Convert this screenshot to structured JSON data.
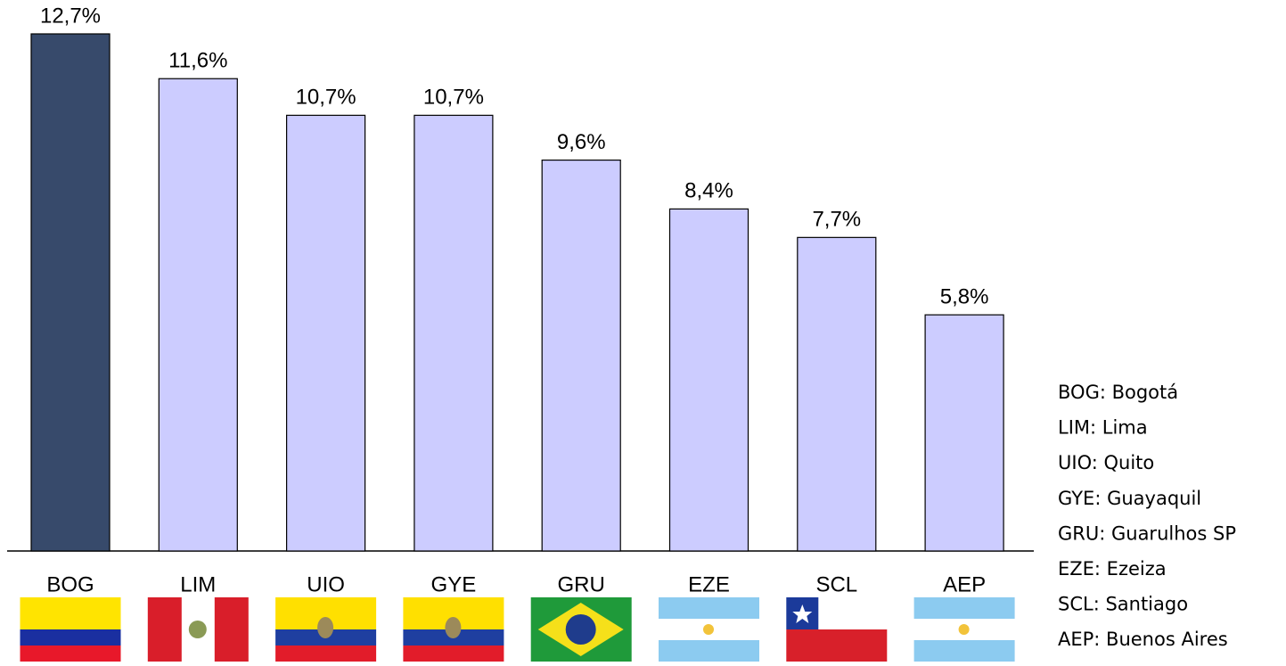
{
  "chart_data": {
    "type": "bar",
    "categories": [
      "BOG",
      "LIM",
      "UIO",
      "GYE",
      "GRU",
      "EZE",
      "SCL",
      "AEP"
    ],
    "values": [
      12.7,
      11.6,
      10.7,
      10.7,
      9.6,
      8.4,
      7.7,
      5.8
    ],
    "value_labels": [
      "12,7%",
      "11,6%",
      "10,7%",
      "10,7%",
      "9,6%",
      "8,4%",
      "7,7%",
      "5,8%"
    ],
    "colors": [
      "#374a6b",
      "#ccccff",
      "#ccccff",
      "#ccccff",
      "#ccccff",
      "#ccccff",
      "#ccccff",
      "#ccccff"
    ],
    "annotations": [
      "BOG: Bogotá",
      "LIM: Lima",
      "UIO: Quito",
      "GYE: Guayaquil",
      "GRU: Guarulhos SP",
      "EZE: Ezeiza",
      "SCL: Santiago",
      "AEP: Buenos Aires"
    ]
  }
}
